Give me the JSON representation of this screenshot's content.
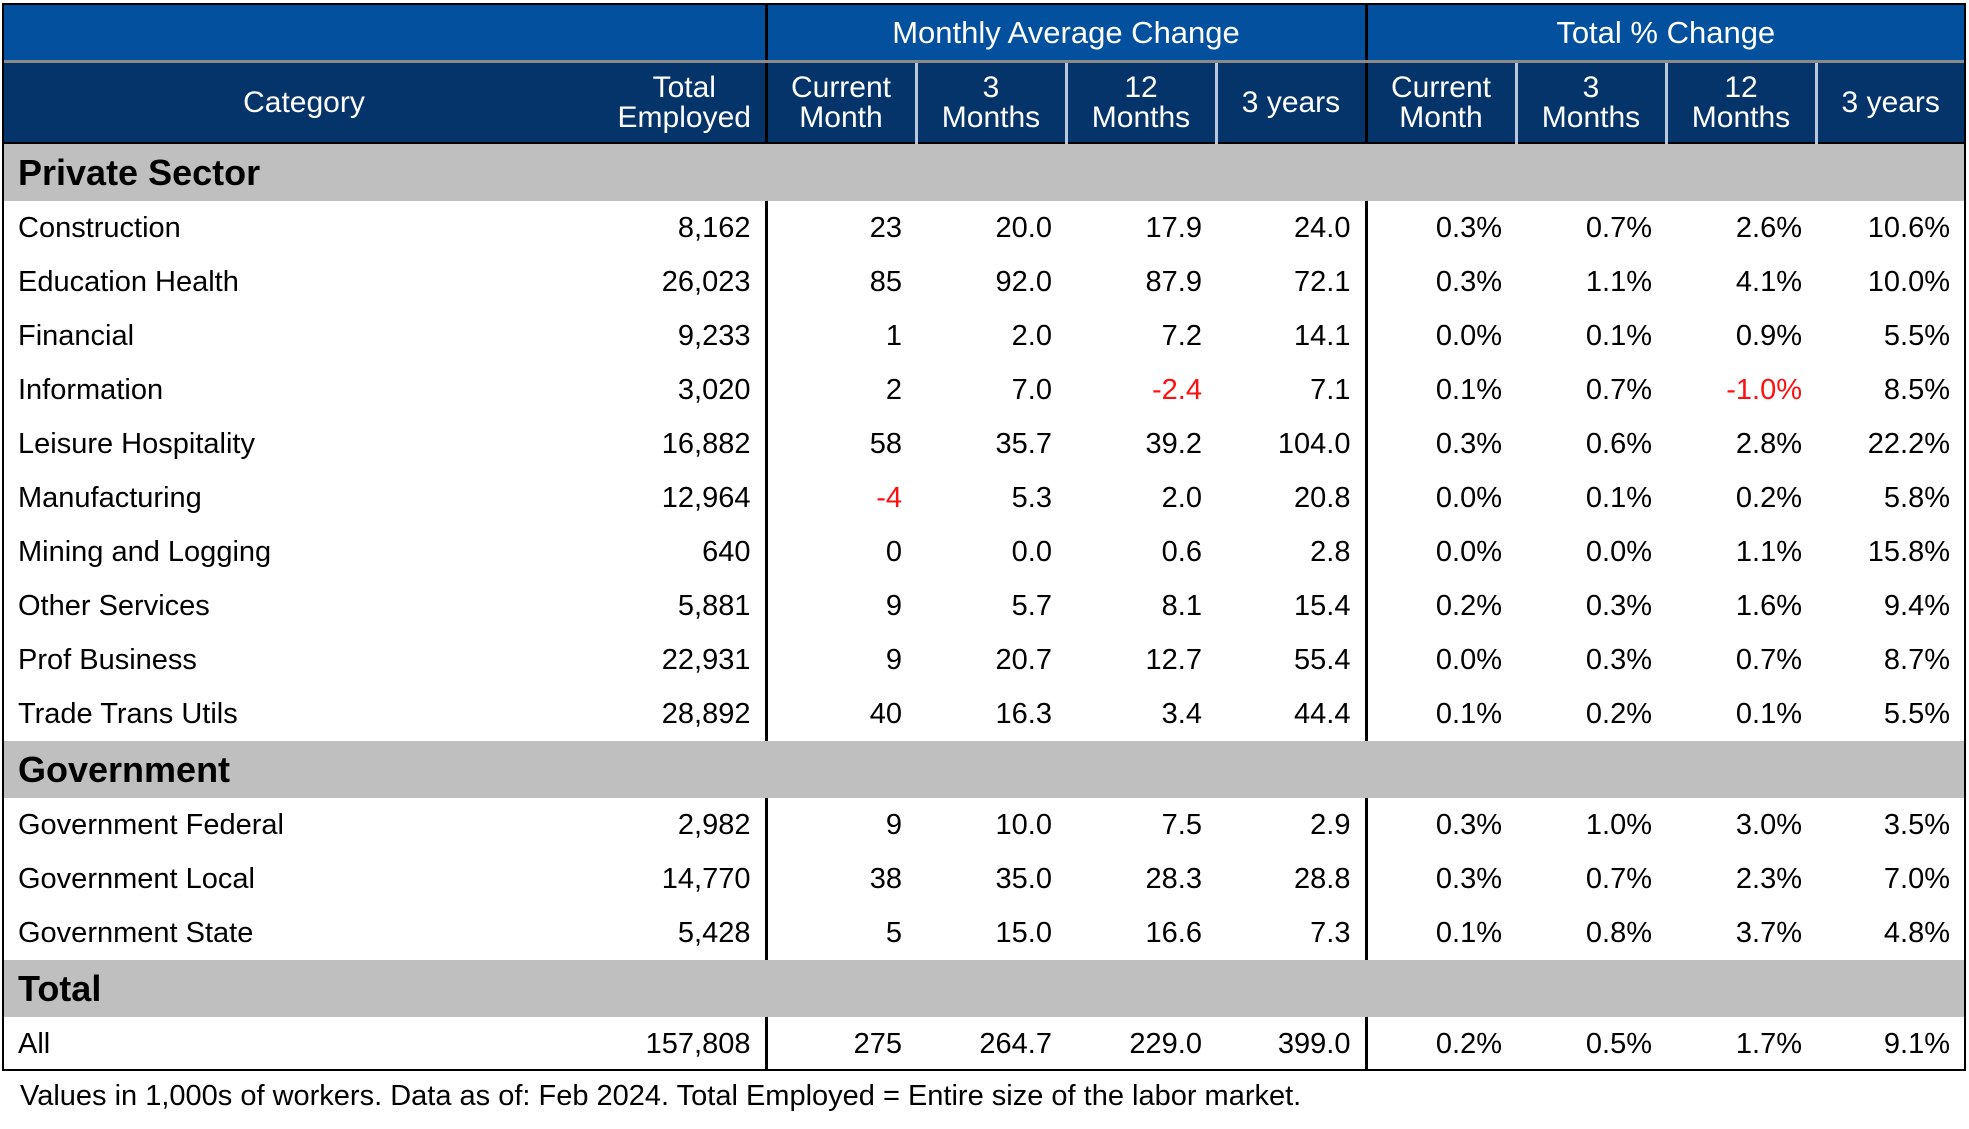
{
  "header": {
    "group_monthly": "Monthly Average Change",
    "group_total_pct": "Total % Change",
    "columns": {
      "category": "Category",
      "total_employed": [
        "Total",
        "Employed"
      ],
      "current_month": [
        "Current",
        "Month"
      ],
      "three_months": [
        "3",
        "Months"
      ],
      "twelve_months": [
        "12",
        "Months"
      ],
      "three_years": "3 years"
    }
  },
  "sections": [
    {
      "title": "Private Sector",
      "rows": [
        {
          "category": "Construction",
          "total": "8,162",
          "m_cur": "23",
          "m_3m": "20.0",
          "m_12m": "17.9",
          "m_3y": "24.0",
          "p_cur": "0.3%",
          "p_3m": "0.7%",
          "p_12m": "2.6%",
          "p_3y": "10.6%"
        },
        {
          "category": "Education Health",
          "total": "26,023",
          "m_cur": "85",
          "m_3m": "92.0",
          "m_12m": "87.9",
          "m_3y": "72.1",
          "p_cur": "0.3%",
          "p_3m": "1.1%",
          "p_12m": "4.1%",
          "p_3y": "10.0%"
        },
        {
          "category": "Financial",
          "total": "9,233",
          "m_cur": "1",
          "m_3m": "2.0",
          "m_12m": "7.2",
          "m_3y": "14.1",
          "p_cur": "0.0%",
          "p_3m": "0.1%",
          "p_12m": "0.9%",
          "p_3y": "5.5%"
        },
        {
          "category": "Information",
          "total": "3,020",
          "m_cur": "2",
          "m_3m": "7.0",
          "m_12m": "-2.4",
          "m_3y": "7.1",
          "p_cur": "0.1%",
          "p_3m": "0.7%",
          "p_12m": "-1.0%",
          "p_3y": "8.5%"
        },
        {
          "category": "Leisure Hospitality",
          "total": "16,882",
          "m_cur": "58",
          "m_3m": "35.7",
          "m_12m": "39.2",
          "m_3y": "104.0",
          "p_cur": "0.3%",
          "p_3m": "0.6%",
          "p_12m": "2.8%",
          "p_3y": "22.2%"
        },
        {
          "category": "Manufacturing",
          "total": "12,964",
          "m_cur": "-4",
          "m_3m": "5.3",
          "m_12m": "2.0",
          "m_3y": "20.8",
          "p_cur": "0.0%",
          "p_3m": "0.1%",
          "p_12m": "0.2%",
          "p_3y": "5.8%"
        },
        {
          "category": "Mining and Logging",
          "total": "640",
          "m_cur": "0",
          "m_3m": "0.0",
          "m_12m": "0.6",
          "m_3y": "2.8",
          "p_cur": "0.0%",
          "p_3m": "0.0%",
          "p_12m": "1.1%",
          "p_3y": "15.8%"
        },
        {
          "category": "Other Services",
          "total": "5,881",
          "m_cur": "9",
          "m_3m": "5.7",
          "m_12m": "8.1",
          "m_3y": "15.4",
          "p_cur": "0.2%",
          "p_3m": "0.3%",
          "p_12m": "1.6%",
          "p_3y": "9.4%"
        },
        {
          "category": "Prof Business",
          "total": "22,931",
          "m_cur": "9",
          "m_3m": "20.7",
          "m_12m": "12.7",
          "m_3y": "55.4",
          "p_cur": "0.0%",
          "p_3m": "0.3%",
          "p_12m": "0.7%",
          "p_3y": "8.7%"
        },
        {
          "category": "Trade Trans Utils",
          "total": "28,892",
          "m_cur": "40",
          "m_3m": "16.3",
          "m_12m": "3.4",
          "m_3y": "44.4",
          "p_cur": "0.1%",
          "p_3m": "0.2%",
          "p_12m": "0.1%",
          "p_3y": "5.5%"
        }
      ]
    },
    {
      "title": "Government",
      "rows": [
        {
          "category": "Government Federal",
          "total": "2,982",
          "m_cur": "9",
          "m_3m": "10.0",
          "m_12m": "7.5",
          "m_3y": "2.9",
          "p_cur": "0.3%",
          "p_3m": "1.0%",
          "p_12m": "3.0%",
          "p_3y": "3.5%"
        },
        {
          "category": "Government Local",
          "total": "14,770",
          "m_cur": "38",
          "m_3m": "35.0",
          "m_12m": "28.3",
          "m_3y": "28.8",
          "p_cur": "0.3%",
          "p_3m": "0.7%",
          "p_12m": "2.3%",
          "p_3y": "7.0%"
        },
        {
          "category": "Government State",
          "total": "5,428",
          "m_cur": "5",
          "m_3m": "15.0",
          "m_12m": "16.6",
          "m_3y": "7.3",
          "p_cur": "0.1%",
          "p_3m": "0.8%",
          "p_12m": "3.7%",
          "p_3y": "4.8%"
        }
      ]
    },
    {
      "title": "Total",
      "rows": [
        {
          "category": "All",
          "total": "157,808",
          "m_cur": "275",
          "m_3m": "264.7",
          "m_12m": "229.0",
          "m_3y": "399.0",
          "p_cur": "0.2%",
          "p_3m": "0.5%",
          "p_12m": "1.7%",
          "p_3y": "9.1%"
        }
      ]
    }
  ],
  "footnote": "Values in 1,000s of workers. Data as of: Feb 2024. Total Employed = Entire size of the labor market.",
  "colors": {
    "header_group_bg": "#03509f",
    "header_sub_bg": "#05346b",
    "section_bg": "#bfbfbf",
    "negative_text": "#ff1010"
  }
}
